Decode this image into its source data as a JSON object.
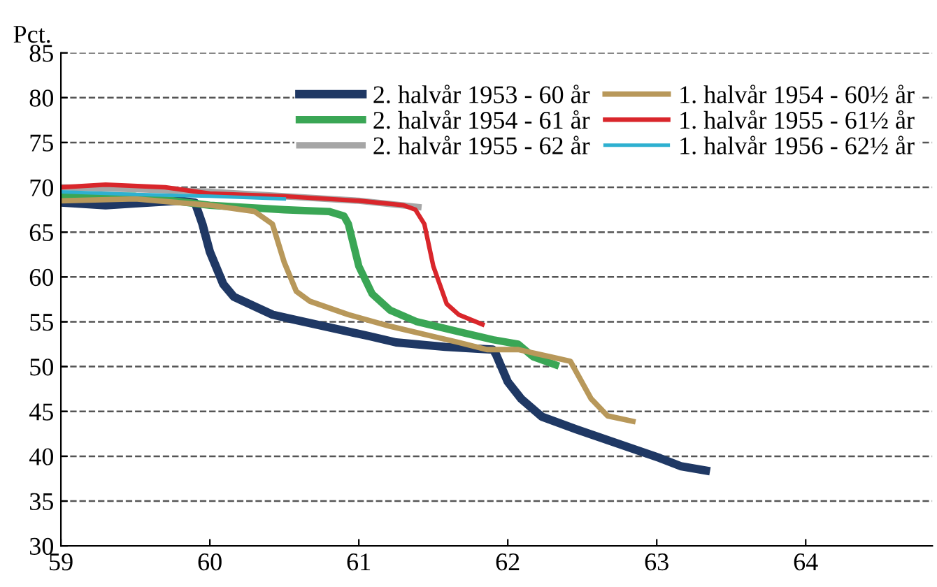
{
  "chart_data": {
    "type": "line",
    "ylabel": "Pct.",
    "xlim": [
      59,
      64.85
    ],
    "xticks": [
      59,
      60,
      61,
      62,
      63,
      64
    ],
    "ylim": [
      30,
      85
    ],
    "yticks": [
      30,
      35,
      40,
      45,
      50,
      55,
      60,
      65,
      70,
      75,
      80,
      85
    ],
    "grid": "y",
    "legend": "top right",
    "line_style": "solid",
    "marker": "none",
    "series": [
      {
        "name": "2. halvår 1953 - 60 år",
        "color": "#1f3864",
        "x": [
          59,
          59.3,
          59.5,
          59.8,
          59.9,
          59.95,
          60.0,
          60.09,
          60.16,
          60.42,
          60.55,
          61.07,
          61.25,
          61.58,
          61.9,
          61.92,
          62.0,
          62.09,
          62.23,
          62.46,
          62.88,
          63.02,
          63.16,
          63.33
        ],
        "values": [
          68.3,
          68,
          68.2,
          68.5,
          68.3,
          65.9,
          62.8,
          59.2,
          57.8,
          55.8,
          55.3,
          53.4,
          52.7,
          52.2,
          51.9,
          51.4,
          48.3,
          46.4,
          44.4,
          43.0,
          40.6,
          39.8,
          38.9,
          38.4
        ]
      },
      {
        "name": "2. halvår 1954 - 61 år",
        "color": "#3aa655",
        "x": [
          59,
          59.5,
          60,
          60.5,
          60.8,
          60.9,
          60.93,
          61.0,
          61.09,
          61.21,
          61.39,
          61.67,
          61.9,
          62.07,
          62.17,
          62.32
        ],
        "values": [
          69,
          69,
          68,
          67.5,
          67.3,
          66.8,
          65.9,
          61.2,
          58.1,
          56.3,
          55,
          53.9,
          53,
          52.5,
          51.1,
          50.2
        ]
      },
      {
        "name": "2. halvår 1955 - 62 år",
        "color": "#a6a6a6",
        "x": [
          59,
          59.5,
          60,
          60.5,
          61,
          61.4
        ],
        "values": [
          70,
          69.8,
          69.5,
          69,
          68.5,
          67.8
        ]
      },
      {
        "name": "1. halvår 1954 - 60½ år",
        "color": "#b8985a",
        "x": [
          59,
          59.5,
          60,
          60.3,
          60.42,
          60.5,
          60.58,
          60.67,
          60.93,
          61.21,
          61.49,
          61.67,
          61.86,
          62.07,
          62.42,
          62.56,
          62.67,
          62.84
        ],
        "values": [
          68.5,
          68.7,
          68,
          67.3,
          65.9,
          61.6,
          58.4,
          57.3,
          55.8,
          54.5,
          53.4,
          52.7,
          51.9,
          51.9,
          50.6,
          46.4,
          44.5,
          43.9
        ]
      },
      {
        "name": "1. halvår 1955 - 61½ år",
        "color": "#d9262b",
        "x": [
          59,
          59.3,
          59.7,
          60,
          60.5,
          61,
          61.3,
          61.38,
          61.44,
          61.5,
          61.59,
          61.67,
          61.83
        ],
        "values": [
          70,
          70.3,
          70,
          69.3,
          69,
          68.5,
          68,
          67.5,
          65.9,
          61.2,
          57,
          55.8,
          54.7
        ]
      },
      {
        "name": "1. halvår 1956 - 62½ år",
        "color": "#2eb0d0",
        "x": [
          59,
          59.5,
          60,
          60.5
        ],
        "values": [
          69.5,
          69.2,
          69,
          68.7
        ]
      }
    ]
  }
}
